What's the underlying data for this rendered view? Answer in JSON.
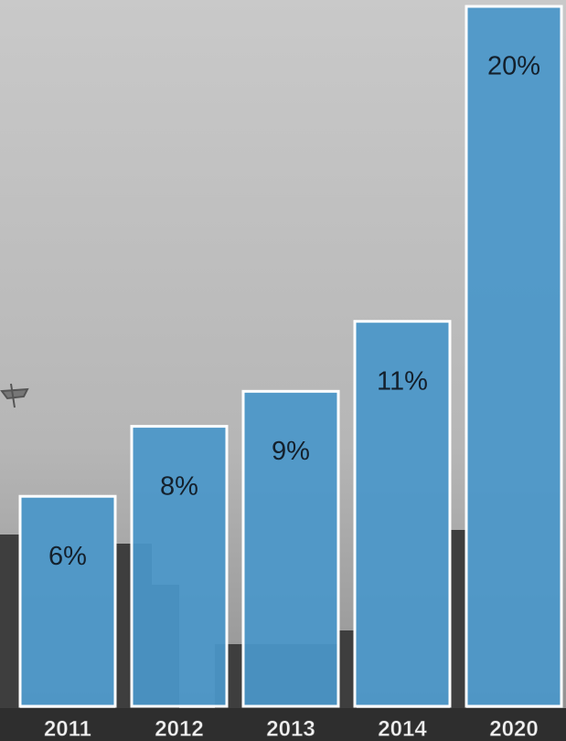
{
  "chart_data": {
    "type": "bar",
    "categories": [
      "2011",
      "2012",
      "2013",
      "2014",
      "2020"
    ],
    "values": [
      6,
      8,
      9,
      11,
      20
    ],
    "value_labels": [
      "6%",
      "8%",
      "9%",
      "11%",
      "20%"
    ],
    "color": "#4a97c9"
  }
}
